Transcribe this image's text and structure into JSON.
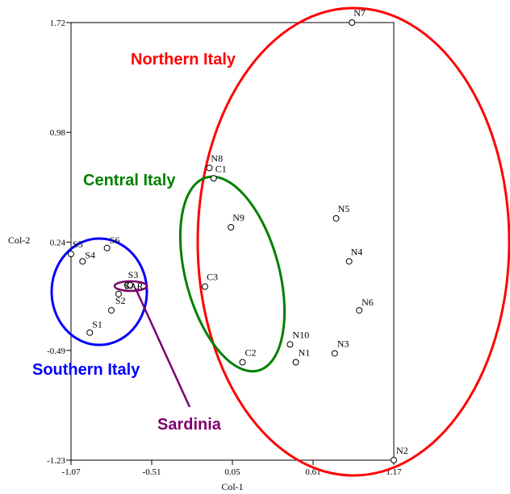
{
  "chart_data": {
    "type": "scatter",
    "title": "",
    "xlabel": "Col-1",
    "ylabel": "Col-2",
    "xlim": [
      -1.07,
      1.17
    ],
    "ylim": [
      -1.23,
      1.72
    ],
    "xticks": [
      "-1.07",
      "-0.51",
      "0.05",
      "0.61",
      "1.17"
    ],
    "yticks": [
      "-1.23",
      "-0.49",
      "0.24",
      "0.98",
      "1.72"
    ],
    "grid": false,
    "points": [
      {
        "label": "N7",
        "x": 0.88,
        "y": 1.72
      },
      {
        "label": "N8",
        "x": -0.11,
        "y": 0.74
      },
      {
        "label": "C1",
        "x": -0.08,
        "y": 0.67
      },
      {
        "label": "N5",
        "x": 0.77,
        "y": 0.4
      },
      {
        "label": "N9",
        "x": 0.04,
        "y": 0.34
      },
      {
        "label": "N4",
        "x": 0.86,
        "y": 0.11
      },
      {
        "label": "C3",
        "x": -0.14,
        "y": -0.06
      },
      {
        "label": "N6",
        "x": 0.93,
        "y": -0.22
      },
      {
        "label": "N10",
        "x": 0.45,
        "y": -0.45
      },
      {
        "label": "N3",
        "x": 0.76,
        "y": -0.51
      },
      {
        "label": "C2",
        "x": 0.12,
        "y": -0.57
      },
      {
        "label": "N1",
        "x": 0.49,
        "y": -0.57
      },
      {
        "label": "N2",
        "x": 1.17,
        "y": -1.23
      },
      {
        "label": "S5",
        "x": -1.07,
        "y": 0.16
      },
      {
        "label": "S4",
        "x": -0.99,
        "y": 0.11
      },
      {
        "label": "S6",
        "x": -0.82,
        "y": 0.2
      },
      {
        "label": "S3",
        "x": -0.68,
        "y": -0.05
      },
      {
        "label": "SAR",
        "x": -0.66,
        "y": -0.05
      },
      {
        "label": "S2",
        "x": -0.74,
        "y": -0.11
      },
      {
        "label": "S1",
        "x": -0.94,
        "y": -0.37
      },
      {
        "label": "",
        "x": -0.79,
        "y": -0.22
      }
    ],
    "groups": [
      {
        "name": "Northern Italy",
        "color": "#ff0000"
      },
      {
        "name": "Central Italy",
        "color": "#008000"
      },
      {
        "name": "Southern Italy",
        "color": "#0000ff"
      },
      {
        "name": "Sardinia",
        "color": "#7b006e"
      }
    ]
  }
}
